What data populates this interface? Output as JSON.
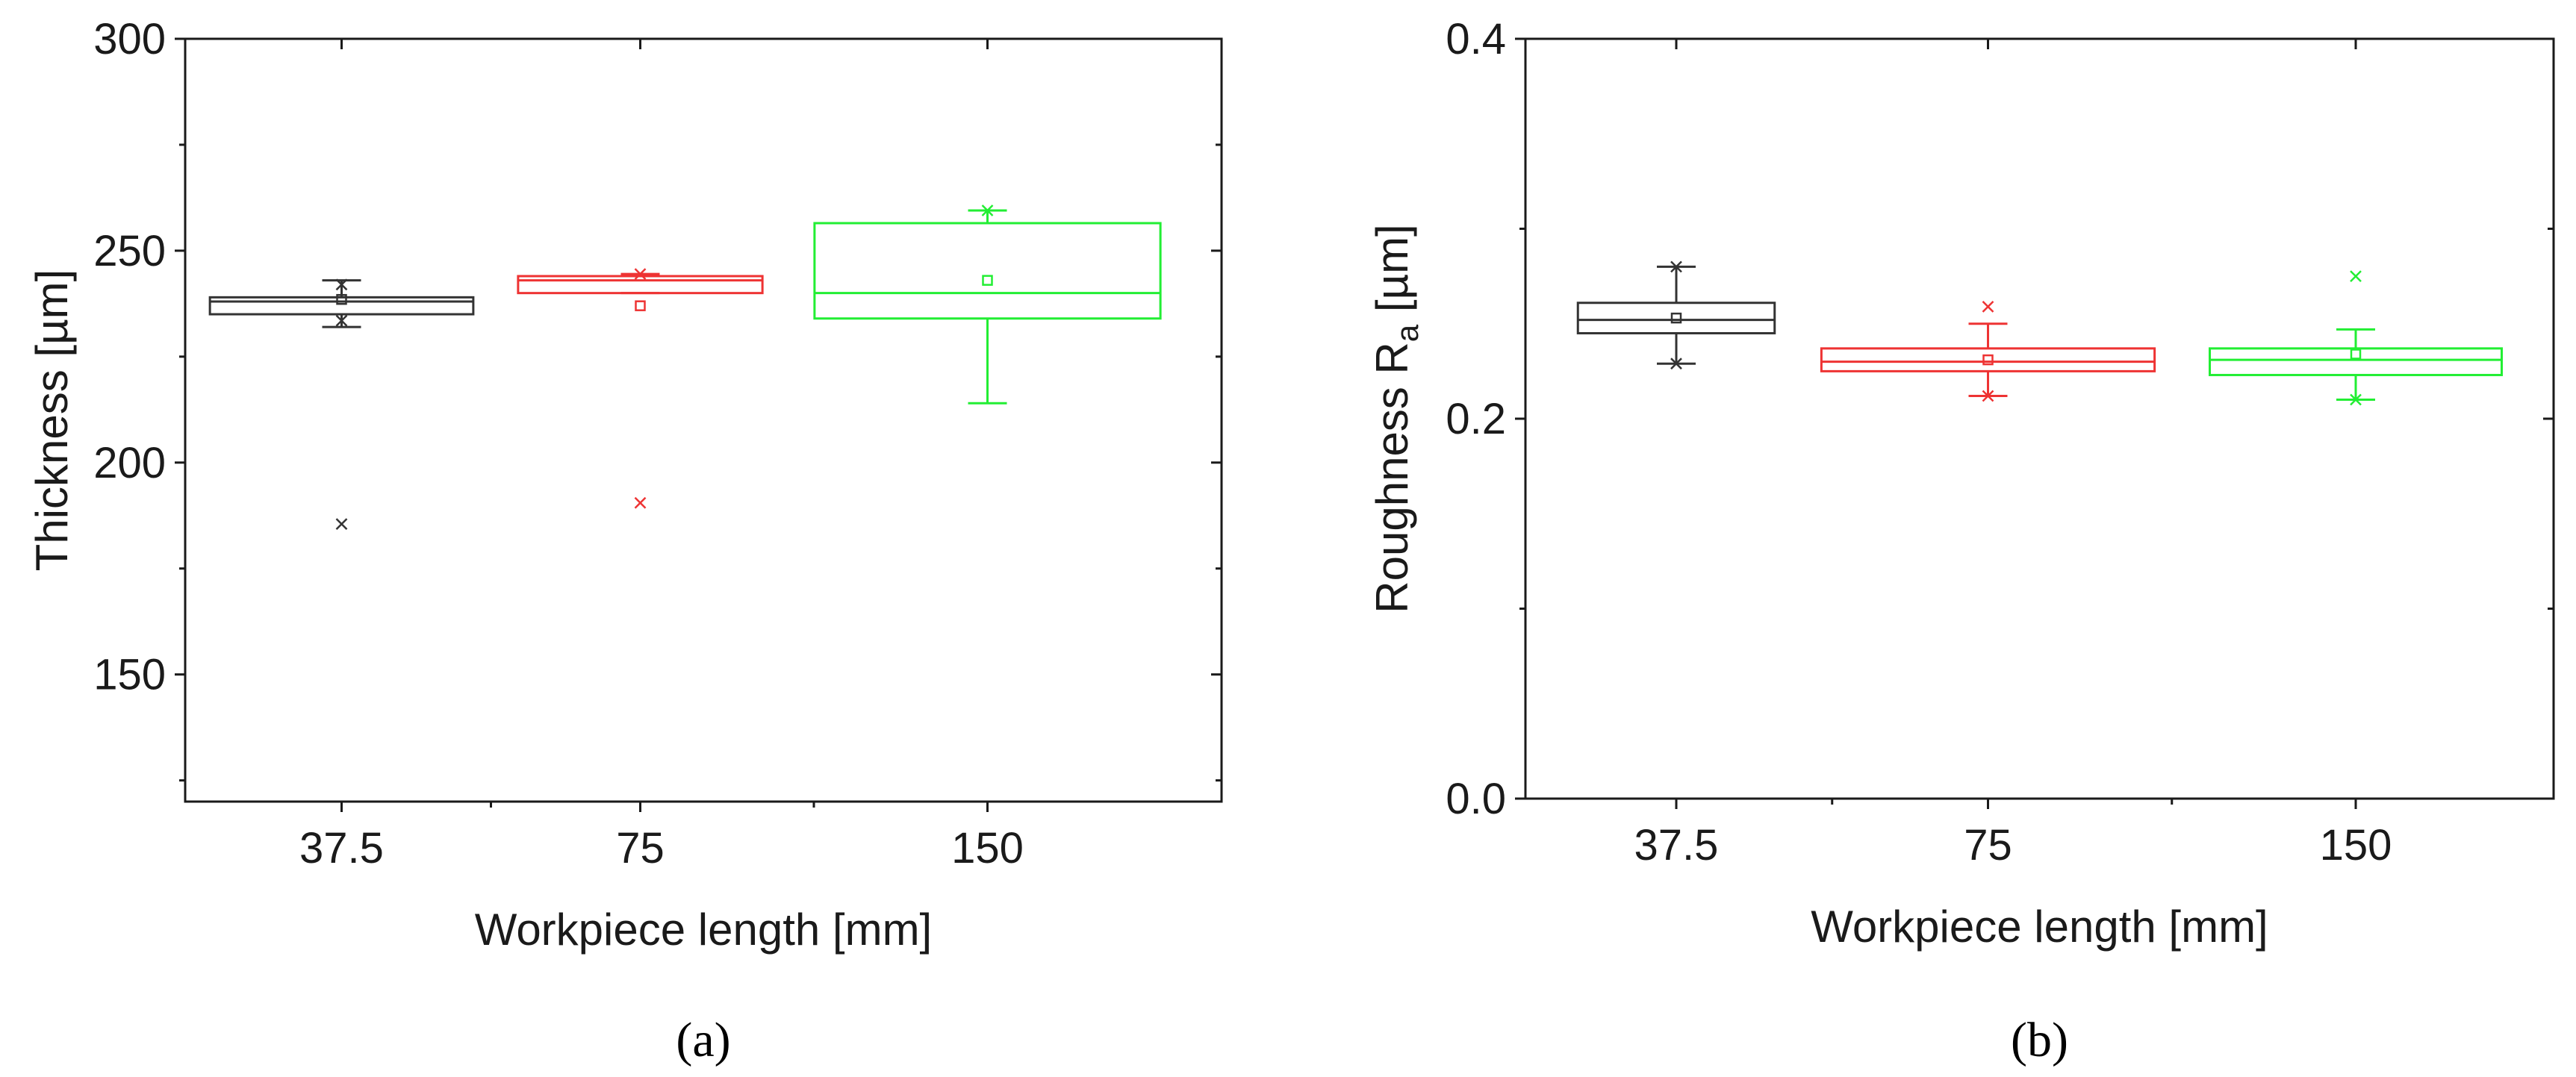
{
  "colors": {
    "axis": "#1a1a1a",
    "series": [
      "#333333",
      "#ee3333",
      "#22ee33"
    ]
  },
  "chart_data": [
    {
      "type": "box",
      "panel_label": "(a)",
      "ylabel": "Thickness [µm]",
      "xlabel": "Workpiece length [mm]",
      "categories": [
        "37.5",
        "75",
        "150"
      ],
      "ylim": [
        120,
        300
      ],
      "yticks": [
        150,
        200,
        250,
        300
      ],
      "yticks_minor": [
        125,
        175,
        225,
        275
      ],
      "grid": false,
      "boxes": [
        {
          "category": "37.5",
          "color": "#333333",
          "whisker_low": 232,
          "q1": 235,
          "median": 238,
          "q3": 239,
          "whisker_high": 243,
          "mean": 238.5,
          "outliers": [
            185.5,
            233.5,
            242
          ]
        },
        {
          "category": "75",
          "color": "#ee3333",
          "whisker_low": 240,
          "q1": 240,
          "median": 243,
          "q3": 244,
          "whisker_high": 244.5,
          "mean": 237,
          "outliers": [
            190.5,
            244.5
          ]
        },
        {
          "category": "150",
          "color": "#22ee33",
          "whisker_low": 214,
          "q1": 234,
          "median": 240,
          "q3": 256.5,
          "whisker_high": 259.5,
          "mean": 243,
          "outliers": [
            259.5
          ]
        }
      ]
    },
    {
      "type": "box",
      "panel_label": "(b)",
      "ylabel": "Roughness R",
      "ylabel_sub": "a",
      "ylabel_unit": " [µm]",
      "xlabel": "Workpiece length [mm]",
      "categories": [
        "37.5",
        "75",
        "150"
      ],
      "ylim": [
        0,
        0.4
      ],
      "yticks": [
        0,
        0.2,
        0.4
      ],
      "ytick_labels": [
        "0.0",
        "0.2",
        "0.4"
      ],
      "yticks_minor": [
        0.1,
        0.3
      ],
      "grid": false,
      "boxes": [
        {
          "category": "37.5",
          "color": "#333333",
          "whisker_low": 0.229,
          "q1": 0.245,
          "median": 0.252,
          "q3": 0.261,
          "whisker_high": 0.28,
          "mean": 0.253,
          "outliers": [
            0.229,
            0.28
          ]
        },
        {
          "category": "75",
          "color": "#ee3333",
          "whisker_low": 0.212,
          "q1": 0.225,
          "median": 0.23,
          "q3": 0.237,
          "whisker_high": 0.25,
          "mean": 0.231,
          "outliers": [
            0.259,
            0.212
          ]
        },
        {
          "category": "150",
          "color": "#22ee33",
          "whisker_low": 0.21,
          "q1": 0.223,
          "median": 0.231,
          "q3": 0.237,
          "whisker_high": 0.247,
          "mean": 0.234,
          "outliers": [
            0.275,
            0.21
          ]
        }
      ]
    }
  ]
}
